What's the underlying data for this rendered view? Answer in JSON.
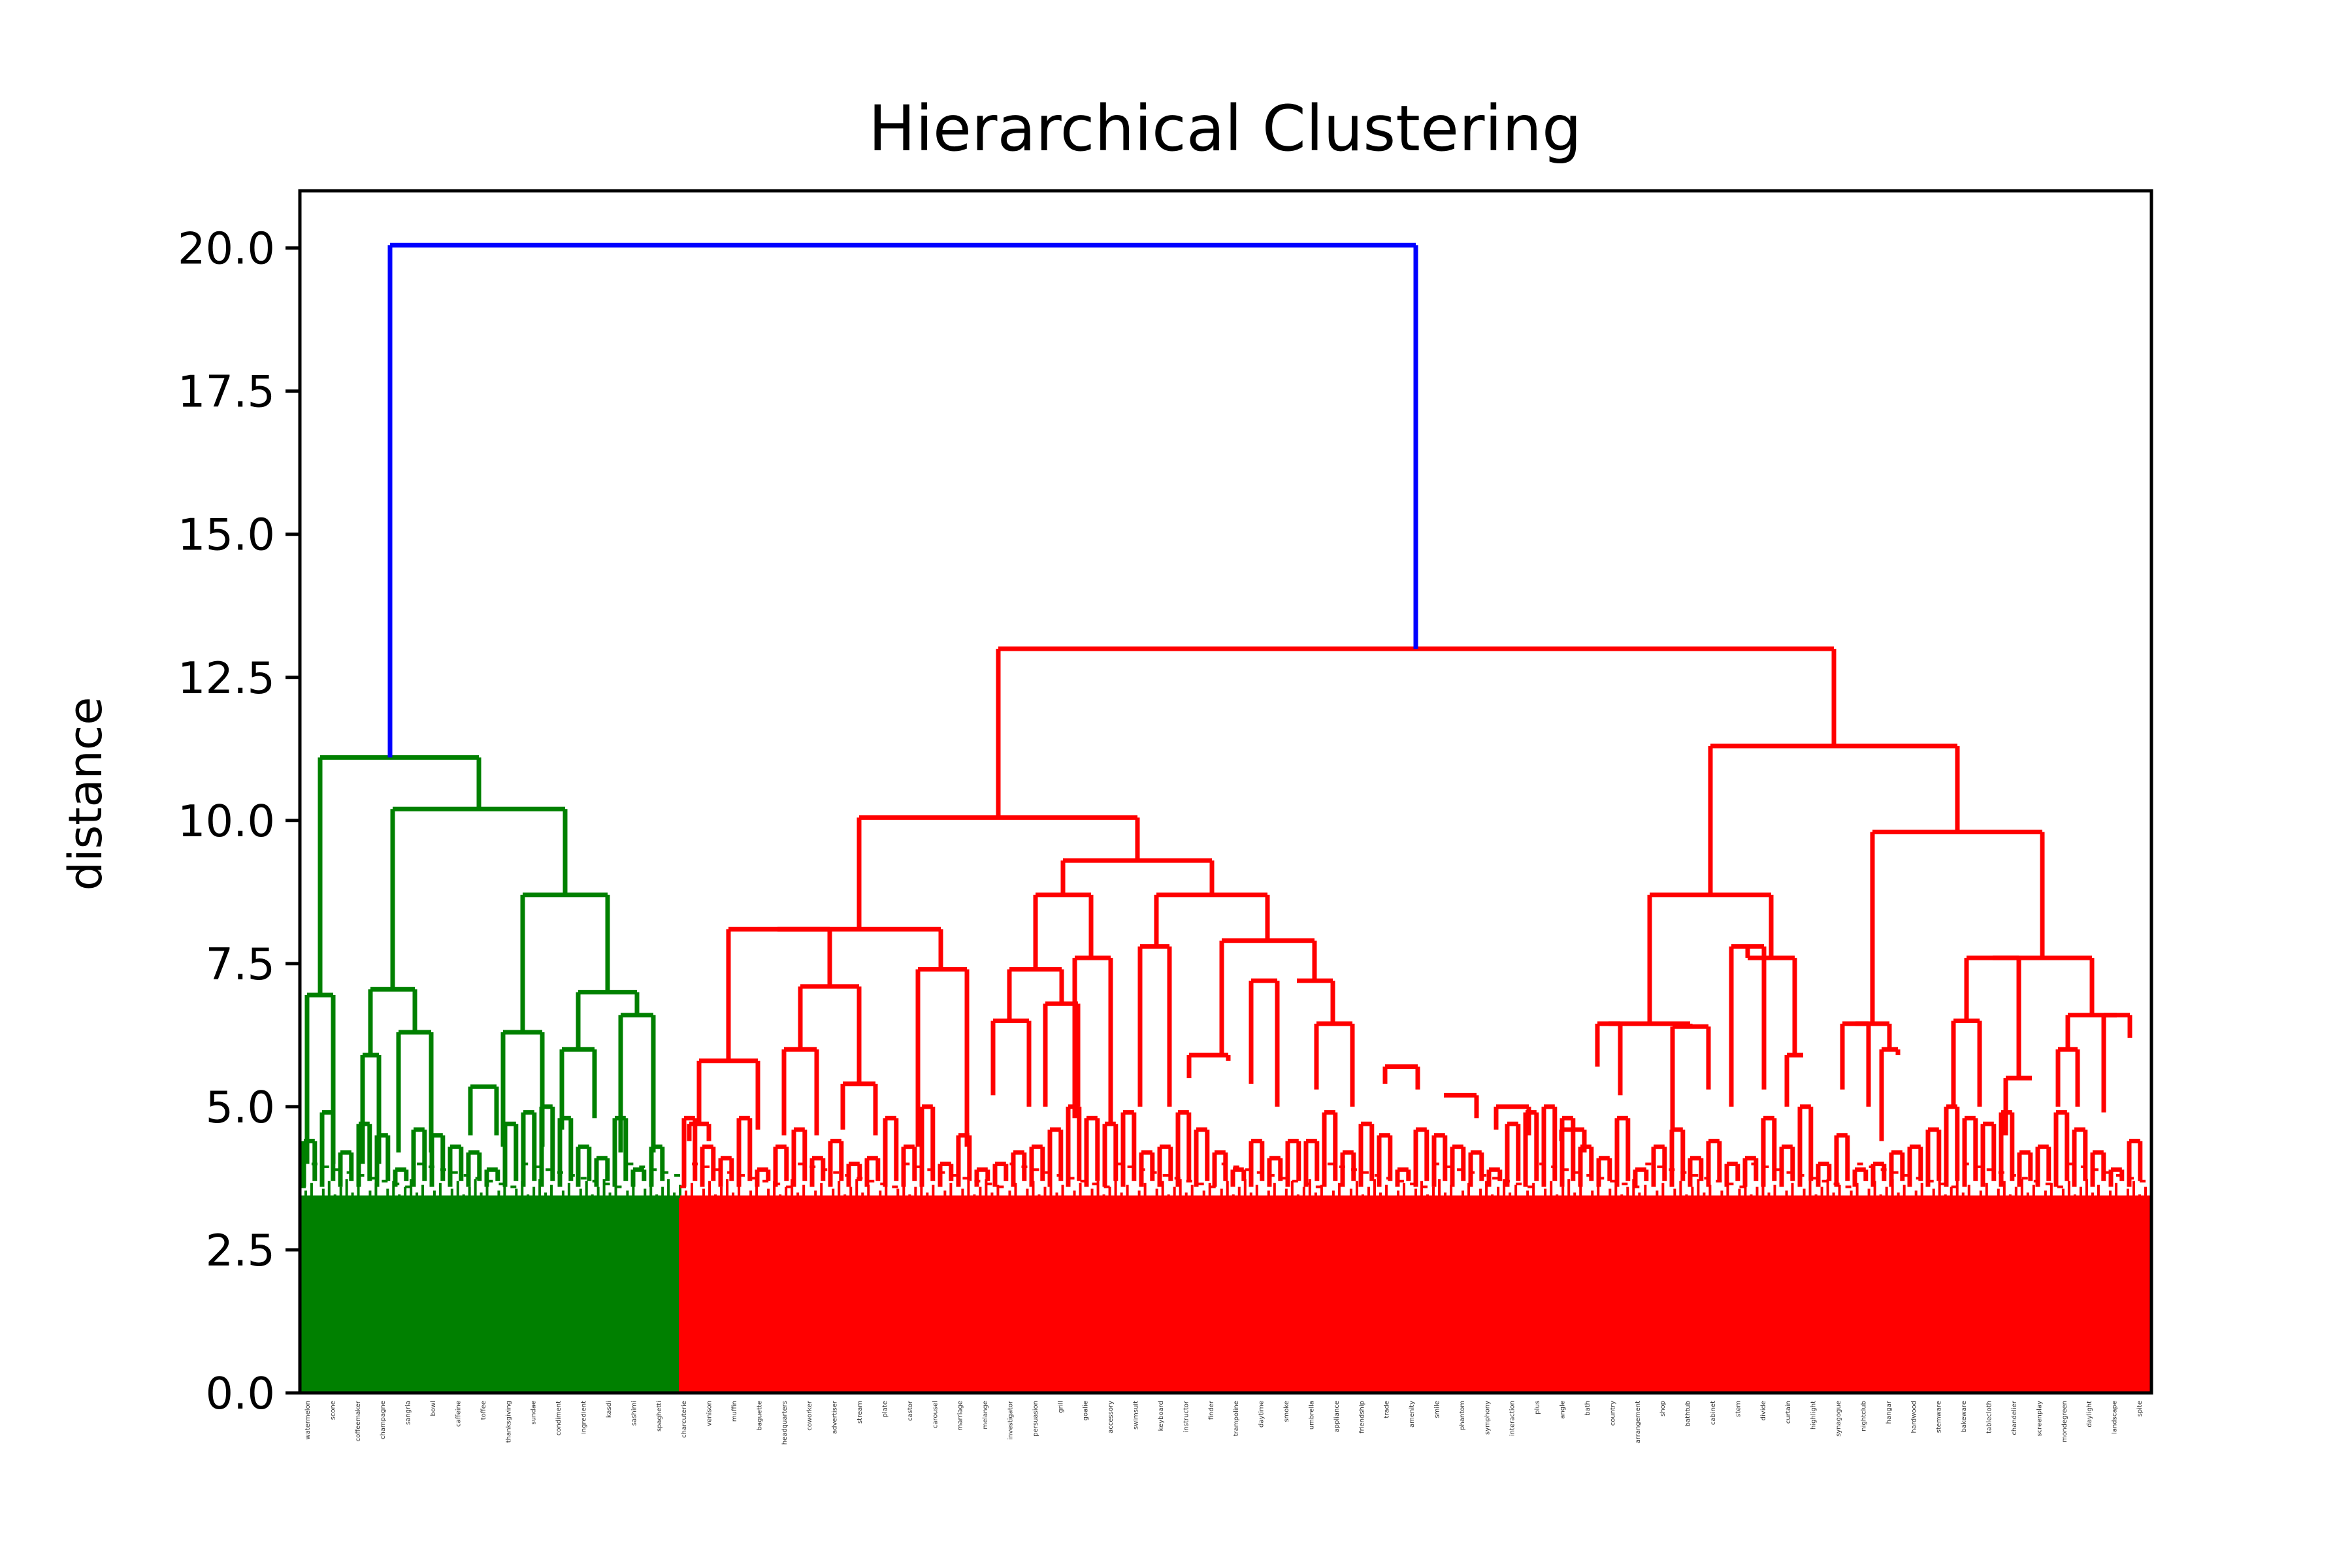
{
  "chart_data": {
    "type": "dendrogram",
    "title": "Hierarchical Clustering",
    "xlabel": "",
    "ylabel": "distance",
    "ylim": [
      0,
      21
    ],
    "yticks": [
      "0.0",
      "2.5",
      "5.0",
      "7.5",
      "10.0",
      "12.5",
      "15.0",
      "17.5",
      "20.0"
    ],
    "colors": {
      "root": "#0000ff",
      "cluster_1": "#008000",
      "cluster_2": "#ff0000",
      "axes": "#000000"
    },
    "leaf_count_approx": {
      "cluster_1": 60,
      "cluster_2": 230
    },
    "merges": [
      {
        "name": "root",
        "height": 20.05,
        "color": "root",
        "children": [
          "cluster_1_top",
          "cluster_2_top"
        ]
      },
      {
        "name": "cluster_1_top",
        "height": 11.1,
        "color": "cluster_1"
      },
      {
        "name": "cluster_1_sub_a",
        "height": 6.95,
        "color": "cluster_1"
      },
      {
        "name": "cluster_1_sub_b",
        "height": 10.2,
        "color": "cluster_1"
      },
      {
        "name": "cluster_1_sub_c",
        "height": 7.05,
        "color": "cluster_1"
      },
      {
        "name": "cluster_1_sub_d",
        "height": 8.7,
        "color": "cluster_1"
      },
      {
        "name": "cluster_1_sub_e",
        "height": 7.0,
        "color": "cluster_1"
      },
      {
        "name": "cluster_2_top",
        "height": 13.0,
        "color": "cluster_2"
      },
      {
        "name": "cluster_2_left",
        "height": 10.05,
        "color": "cluster_2"
      },
      {
        "name": "cluster_2_left_a",
        "height": 8.1,
        "color": "cluster_2"
      },
      {
        "name": "cluster_2_left_b",
        "height": 9.3,
        "color": "cluster_2"
      },
      {
        "name": "cluster_2_left_b1",
        "height": 8.7,
        "color": "cluster_2"
      },
      {
        "name": "cluster_2_left_b2",
        "height": 8.7,
        "color": "cluster_2"
      },
      {
        "name": "cluster_2_left_b2a",
        "height": 7.9,
        "color": "cluster_2"
      },
      {
        "name": "cluster_2_left_b2b",
        "height": 7.2,
        "color": "cluster_2"
      },
      {
        "name": "cluster_2_right",
        "height": 11.3,
        "color": "cluster_2"
      },
      {
        "name": "cluster_2_right_a",
        "height": 8.7,
        "color": "cluster_2"
      },
      {
        "name": "cluster_2_right_b",
        "height": 9.8,
        "color": "cluster_2"
      },
      {
        "name": "cluster_2_right_b1",
        "height": 7.6,
        "color": "cluster_2"
      }
    ],
    "leaf_labels": [
      "watermelon",
      "scone",
      "coffeemaker",
      "champagne",
      "sangria",
      "bowl",
      "caffeine",
      "toffee",
      "thanksgiving",
      "sundae",
      "condiment",
      "ingredient",
      "kasdi",
      "sashimi",
      "spaghetti",
      "charcuterie",
      "venison",
      "muffin",
      "baguette",
      "headquarters",
      "coworker",
      "advertiser",
      "stream",
      "plate",
      "castor",
      "carousel",
      "marriage",
      "melange",
      "investigator",
      "persuasion",
      "grill",
      "goalie",
      "accessory",
      "swimsuit",
      "keyboard",
      "instructor",
      "finder",
      "trampoline",
      "daytime",
      "smoke",
      "umbrella",
      "appliance",
      "friendship",
      "trade",
      "amenity",
      "smile",
      "phantom",
      "symphony",
      "interaction",
      "plus",
      "angle",
      "bath",
      "country",
      "arrangement",
      "shop",
      "bathtub",
      "cabinet",
      "stem",
      "divide",
      "curtain",
      "highlight",
      "synagogue",
      "nightclub",
      "hangar",
      "hardwood",
      "stemware",
      "bakeware",
      "tablecloth",
      "chandelier",
      "screenplay",
      "mondegreen",
      "daylight",
      "landscape",
      "spite"
    ]
  }
}
